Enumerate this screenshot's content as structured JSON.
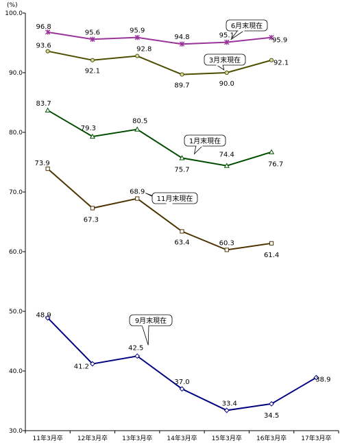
{
  "chart_data": {
    "type": "line",
    "unit": "(%)",
    "categories": [
      "11年3月卒",
      "12年3月卒",
      "13年3月卒",
      "14年3月卒",
      "15年3月卒",
      "16年3月卒",
      "17年3月卒"
    ],
    "ylim": [
      30.0,
      100.0
    ],
    "yticks": [
      "30.0",
      "40.0",
      "50.0",
      "60.0",
      "70.0",
      "80.0",
      "90.0",
      "100.0"
    ],
    "grid": false,
    "series": [
      {
        "name": "6月末現在",
        "color": "#993399",
        "marker": "star",
        "values": [
          96.8,
          95.6,
          95.9,
          94.8,
          95.1,
          95.9,
          null
        ],
        "labels": [
          "96.8",
          "95.6",
          "95.9",
          "94.8",
          "95.1",
          "95.9",
          null
        ]
      },
      {
        "name": "3月末現在",
        "color": "#4d4d00",
        "marker": "circle",
        "values": [
          93.6,
          92.1,
          92.8,
          89.7,
          90.0,
          92.1,
          null
        ],
        "labels": [
          "93.6",
          "92.1",
          "92.8",
          "89.7",
          "90.0",
          "92.1",
          null
        ]
      },
      {
        "name": "1月末現在",
        "color": "#004d00",
        "marker": "triangle",
        "values": [
          83.7,
          79.3,
          80.5,
          75.7,
          74.4,
          76.7,
          null
        ],
        "labels": [
          "83.7",
          "79.3",
          "80.5",
          "75.7",
          "74.4",
          "76.7",
          null
        ]
      },
      {
        "name": "11月末現在",
        "color": "#4d3300",
        "marker": "square",
        "values": [
          73.9,
          67.3,
          68.9,
          63.4,
          60.3,
          61.4,
          null
        ],
        "labels": [
          "73.9",
          "67.3",
          "68.9",
          "63.4",
          "60.3",
          "61.4",
          null
        ]
      },
      {
        "name": "9月末現在",
        "color": "#000080",
        "marker": "diamond",
        "values": [
          48.9,
          41.2,
          42.5,
          37.0,
          33.4,
          34.5,
          38.9
        ],
        "labels": [
          "48.9",
          "41.2",
          "42.5",
          "37.0",
          "33.4",
          "34.5",
          "38.9"
        ]
      }
    ]
  }
}
